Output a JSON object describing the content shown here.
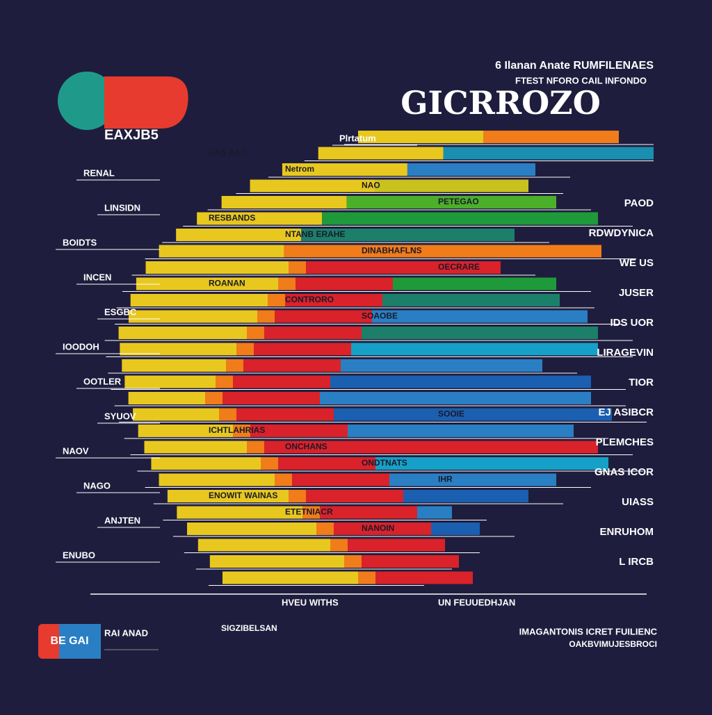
{
  "header": {
    "logo_text": "EAXJB5",
    "subtitle_1": "6 Ilanan Anate RUMFILENAES",
    "subtitle_2": "FTEST NFORO CAIL INFONDO",
    "title": "GICRROZO"
  },
  "left_labels": [
    "Plrtatum",
    "RENAL",
    "LINSIDN",
    "BOIDTS",
    "INCEN",
    "ESGBC",
    "IOODOH",
    "OOTLER",
    "SYUOV",
    "NAOV",
    "NAGO",
    "ANJTEN",
    "ENUBO"
  ],
  "right_labels": [
    "PAOD",
    "RDWDYNICA",
    "WE US",
    "JUSER",
    "IDS UOR",
    "LIRAGEVIN",
    "TIOR",
    "EJ ASIBCR",
    "PLEMCHES",
    "GNAS ICOR",
    "UIASS",
    "ENRUHOM",
    "L IRCB"
  ],
  "bar_labels": [
    "HAS  AAO",
    "Netrom",
    "NAO",
    "PETEGAO",
    "RESBANDS",
    "NTANB ERAHE",
    "DINABHAFLNS",
    "OECRARE",
    "ROANAN",
    "CONTRORO",
    "SOAOBE",
    "SOOIE",
    "ICHTLAHRIAS",
    "ONCHANS",
    "ONDTNATS",
    "IHR",
    "ENOWIT WAINAS",
    "ETETNIACR",
    "NANOIN"
  ],
  "footer": {
    "badge": "BE GAI",
    "name": "RAI ANAD",
    "center": "SIGZIBELSAN",
    "right_1": "IMAGANTONIS ICRET FUILIENC",
    "right_2": "OAKBVIMUJESBROCI",
    "bottom_1": "HVEU WITHS",
    "bottom_2": "UN FEUUEDHJAN"
  }
}
